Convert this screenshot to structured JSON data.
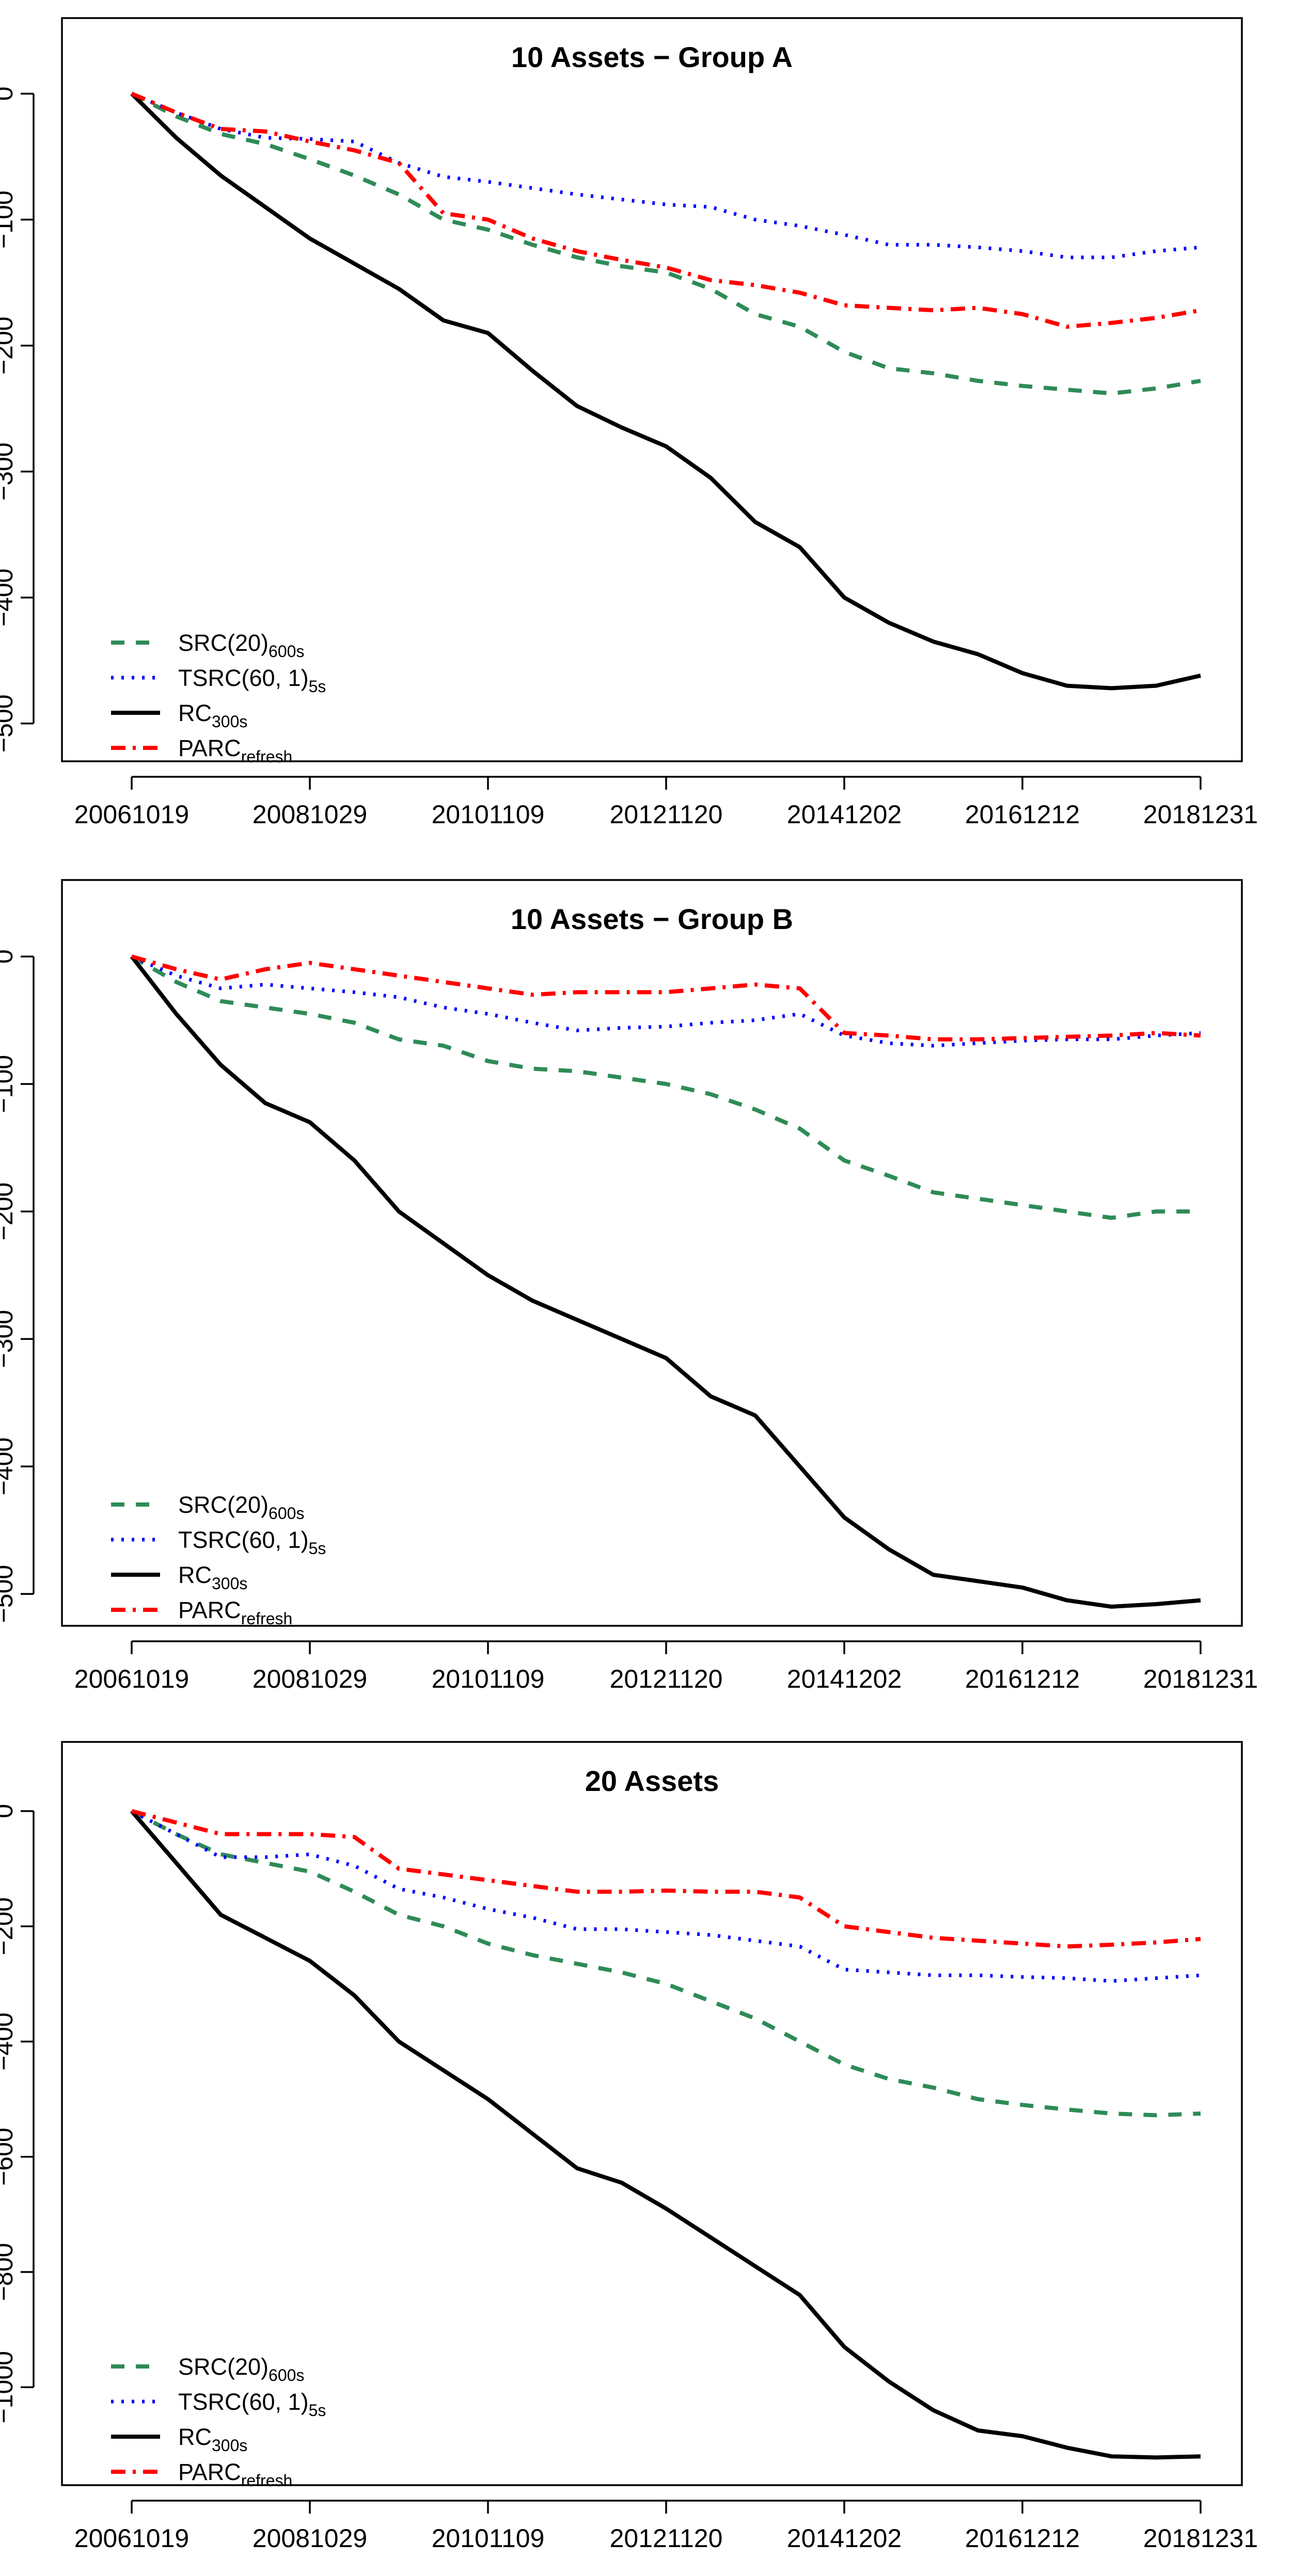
{
  "chart_data": [
    {
      "type": "line",
      "title": "10 Assets − Group A",
      "xlabel": "",
      "ylabel": "",
      "x_tick_labels": [
        "20061019",
        "20081029",
        "20101109",
        "20121120",
        "20141202",
        "20161212",
        "20181231"
      ],
      "x_start": 0,
      "x_end": 12,
      "yticks": [
        0,
        -100,
        -200,
        -300,
        -400,
        -500
      ],
      "ylim": [
        -530,
        60
      ],
      "legend_position": "bottom-left",
      "series": [
        {
          "name": "SRC(20)",
          "subscript": "600s",
          "key": "src",
          "x": [
            0,
            0.5,
            1,
            1.5,
            2,
            2.5,
            3,
            3.5,
            4,
            4.5,
            5,
            5.5,
            6,
            6.5,
            7,
            7.5,
            8,
            8.5,
            9,
            9.5,
            10,
            10.5,
            11,
            11.5,
            12
          ],
          "values": [
            0,
            -18,
            -32,
            -40,
            -52,
            -65,
            -80,
            -100,
            -108,
            -120,
            -130,
            -137,
            -142,
            -155,
            -175,
            -185,
            -205,
            -218,
            -222,
            -228,
            -232,
            -235,
            -238,
            -234,
            -228
          ]
        },
        {
          "name": "TSRC(60, 1)",
          "subscript": "5s",
          "key": "tsrc",
          "x": [
            0,
            0.5,
            1,
            1.5,
            2,
            2.5,
            3,
            3.5,
            4,
            4.5,
            5,
            5.5,
            6,
            6.5,
            7,
            7.5,
            8,
            8.5,
            9,
            9.5,
            10,
            10.5,
            11,
            11.5,
            12
          ],
          "values": [
            0,
            -15,
            -28,
            -35,
            -36,
            -38,
            -55,
            -66,
            -70,
            -75,
            -80,
            -84,
            -88,
            -90,
            -100,
            -105,
            -112,
            -120,
            -120,
            -122,
            -125,
            -130,
            -130,
            -125,
            -122
          ]
        },
        {
          "name": "RC",
          "subscript": "300s",
          "key": "rc",
          "x": [
            0,
            0.5,
            1,
            1.5,
            2,
            2.5,
            3,
            3.5,
            4,
            4.5,
            5,
            5.5,
            6,
            6.5,
            7,
            7.5,
            8,
            8.5,
            9,
            9.5,
            10,
            10.5,
            11,
            11.5,
            12
          ],
          "values": [
            0,
            -35,
            -65,
            -90,
            -115,
            -135,
            -155,
            -180,
            -190,
            -220,
            -248,
            -265,
            -280,
            -305,
            -340,
            -360,
            -400,
            -420,
            -435,
            -445,
            -460,
            -470,
            -472,
            -470,
            -462
          ]
        },
        {
          "name": "PARC",
          "subscript": "refresh",
          "key": "parc",
          "x": [
            0,
            0.5,
            1,
            1.5,
            2,
            2.5,
            3,
            3.5,
            4,
            4.5,
            5,
            5.5,
            6,
            6.5,
            7,
            7.5,
            8,
            8.5,
            9,
            9.5,
            10,
            10.5,
            11,
            11.5,
            12
          ],
          "values": [
            0,
            -15,
            -28,
            -30,
            -38,
            -45,
            -55,
            -95,
            -100,
            -115,
            -125,
            -132,
            -138,
            -148,
            -152,
            -158,
            -168,
            -170,
            -172,
            -170,
            -175,
            -185,
            -182,
            -178,
            -172
          ]
        }
      ]
    },
    {
      "type": "line",
      "title": "10 Assets − Group B",
      "xlabel": "",
      "ylabel": "",
      "x_tick_labels": [
        "20061019",
        "20081029",
        "20101109",
        "20121120",
        "20141202",
        "20161212",
        "20181231"
      ],
      "x_start": 0,
      "x_end": 12,
      "yticks": [
        0,
        -100,
        -200,
        -300,
        -400,
        -500
      ],
      "ylim": [
        -525,
        60
      ],
      "legend_position": "bottom-left",
      "series": [
        {
          "name": "SRC(20)",
          "subscript": "600s",
          "key": "src",
          "x": [
            0,
            0.5,
            1,
            1.5,
            2,
            2.5,
            3,
            3.5,
            4,
            4.5,
            5,
            5.5,
            6,
            6.5,
            7,
            7.5,
            8,
            8.5,
            9,
            9.5,
            10,
            10.5,
            11,
            11.5,
            12
          ],
          "values": [
            0,
            -20,
            -35,
            -40,
            -45,
            -52,
            -65,
            -70,
            -82,
            -88,
            -90,
            -95,
            -100,
            -108,
            -120,
            -135,
            -160,
            -172,
            -185,
            -190,
            -195,
            -200,
            -205,
            -200,
            -200
          ]
        },
        {
          "name": "TSRC(60, 1)",
          "subscript": "5s",
          "key": "tsrc",
          "x": [
            0,
            0.5,
            1,
            1.5,
            2,
            2.5,
            3,
            3.5,
            4,
            4.5,
            5,
            5.5,
            6,
            6.5,
            7,
            7.5,
            8,
            8.5,
            9,
            9.5,
            10,
            10.5,
            11,
            11.5,
            12
          ],
          "values": [
            0,
            -15,
            -25,
            -22,
            -25,
            -28,
            -32,
            -40,
            -45,
            -52,
            -58,
            -56,
            -55,
            -52,
            -50,
            -45,
            -62,
            -68,
            -70,
            -68,
            -66,
            -65,
            -65,
            -62,
            -60
          ]
        },
        {
          "name": "RC",
          "subscript": "300s",
          "key": "rc",
          "x": [
            0,
            0.5,
            1,
            1.5,
            2,
            2.5,
            3,
            3.5,
            4,
            4.5,
            5,
            5.5,
            6,
            6.5,
            7,
            7.5,
            8,
            8.5,
            9,
            9.5,
            10,
            10.5,
            11,
            11.5,
            12
          ],
          "values": [
            0,
            -45,
            -85,
            -115,
            -130,
            -160,
            -200,
            -225,
            -250,
            -270,
            -285,
            -300,
            -315,
            -345,
            -360,
            -400,
            -440,
            -465,
            -485,
            -490,
            -495,
            -505,
            -510,
            -508,
            -505
          ]
        },
        {
          "name": "PARC",
          "subscript": "refresh",
          "key": "parc",
          "x": [
            0,
            0.5,
            1,
            1.5,
            2,
            2.5,
            3,
            3.5,
            4,
            4.5,
            5,
            5.5,
            6,
            6.5,
            7,
            7.5,
            8,
            8.5,
            9,
            9.5,
            10,
            10.5,
            11,
            11.5,
            12
          ],
          "values": [
            0,
            -10,
            -18,
            -10,
            -5,
            -10,
            -15,
            -20,
            -25,
            -30,
            -28,
            -28,
            -28,
            -25,
            -22,
            -25,
            -60,
            -62,
            -65,
            -65,
            -64,
            -63,
            -62,
            -60,
            -62
          ]
        }
      ]
    },
    {
      "type": "line",
      "title": "20 Assets",
      "xlabel": "",
      "ylabel": "",
      "x_tick_labels": [
        "20061019",
        "20081029",
        "20101109",
        "20121120",
        "20141202",
        "20161212",
        "20181231"
      ],
      "x_start": 0,
      "x_end": 12,
      "yticks": [
        0,
        -200,
        -400,
        -600,
        -800,
        -1000
      ],
      "ylim": [
        -1170,
        120
      ],
      "legend_position": "bottom-left",
      "series": [
        {
          "name": "SRC(20)",
          "subscript": "600s",
          "key": "src",
          "x": [
            0,
            0.5,
            1,
            1.5,
            2,
            2.5,
            3,
            3.5,
            4,
            4.5,
            5,
            5.5,
            6,
            6.5,
            7,
            7.5,
            8,
            8.5,
            9,
            9.5,
            10,
            10.5,
            11,
            11.5,
            12
          ],
          "values": [
            0,
            -40,
            -75,
            -90,
            -105,
            -140,
            -180,
            -200,
            -230,
            -250,
            -265,
            -280,
            -300,
            -330,
            -360,
            -400,
            -440,
            -465,
            -480,
            -500,
            -510,
            -518,
            -525,
            -528,
            -525
          ]
        },
        {
          "name": "TSRC(60, 1)",
          "subscript": "5s",
          "key": "tsrc",
          "x": [
            0,
            0.5,
            1,
            1.5,
            2,
            2.5,
            3,
            3.5,
            4,
            4.5,
            5,
            5.5,
            6,
            6.5,
            7,
            7.5,
            8,
            8.5,
            9,
            9.5,
            10,
            10.5,
            11,
            11.5,
            12
          ],
          "values": [
            0,
            -40,
            -80,
            -80,
            -75,
            -95,
            -135,
            -150,
            -170,
            -185,
            -205,
            -205,
            -210,
            -215,
            -225,
            -235,
            -275,
            -280,
            -285,
            -285,
            -288,
            -290,
            -295,
            -290,
            -285
          ]
        },
        {
          "name": "RC",
          "subscript": "300s",
          "key": "rc",
          "x": [
            0,
            0.5,
            1,
            1.5,
            2,
            2.5,
            3,
            3.5,
            4,
            4.5,
            5,
            5.5,
            6,
            6.5,
            7,
            7.5,
            8,
            8.5,
            9,
            9.5,
            10,
            10.5,
            11,
            11.5,
            12
          ],
          "values": [
            0,
            -90,
            -180,
            -220,
            -260,
            -320,
            -400,
            -450,
            -500,
            -560,
            -620,
            -645,
            -690,
            -740,
            -790,
            -840,
            -930,
            -990,
            -1040,
            -1075,
            -1085,
            -1105,
            -1120,
            -1122,
            -1120
          ]
        },
        {
          "name": "PARC",
          "subscript": "refresh",
          "key": "parc",
          "x": [
            0,
            0.5,
            1,
            1.5,
            2,
            2.5,
            3,
            3.5,
            4,
            4.5,
            5,
            5.5,
            6,
            6.5,
            7,
            7.5,
            8,
            8.5,
            9,
            9.5,
            10,
            10.5,
            11,
            11.5,
            12
          ],
          "values": [
            0,
            -20,
            -40,
            -40,
            -40,
            -45,
            -100,
            -110,
            -120,
            -130,
            -140,
            -140,
            -138,
            -140,
            -140,
            -150,
            -200,
            -210,
            -220,
            -225,
            -230,
            -235,
            -232,
            -228,
            -222
          ]
        }
      ]
    }
  ],
  "series_styles": {
    "src": {
      "color": "#2e8b57"
    },
    "tsrc": {
      "color": "#0000ff"
    },
    "rc": {
      "color": "#000000"
    },
    "parc": {
      "color": "#ff0000"
    }
  }
}
